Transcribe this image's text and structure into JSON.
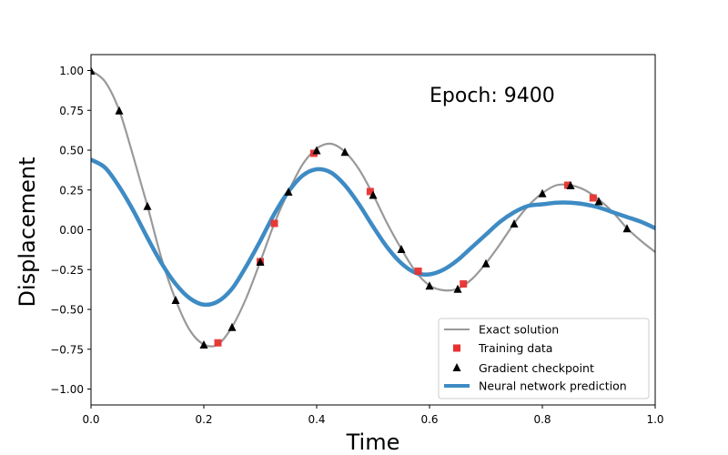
{
  "chart_data": {
    "type": "line",
    "xlabel": "Time",
    "ylabel": "Displacement",
    "xlim": [
      0,
      1
    ],
    "ylim": [
      -1.1,
      1.1
    ],
    "xticks": [
      "0.0",
      "0.2",
      "0.4",
      "0.6",
      "0.8",
      "1.0"
    ],
    "yticks": [
      "-1.00",
      "-0.75",
      "-0.50",
      "-0.25",
      "0.00",
      "0.25",
      "0.50",
      "0.75",
      "1.00"
    ],
    "annotation": "Epoch: 9400",
    "legend_position": "lower-right",
    "grid": false,
    "series": [
      {
        "name": "Exact solution",
        "style": "line",
        "color": "#999999",
        "x": [
          0,
          0.025,
          0.05,
          0.075,
          0.1,
          0.125,
          0.15,
          0.175,
          0.2,
          0.225,
          0.25,
          0.275,
          0.3,
          0.325,
          0.35,
          0.375,
          0.4,
          0.425,
          0.45,
          0.475,
          0.5,
          0.525,
          0.55,
          0.575,
          0.6,
          0.625,
          0.65,
          0.675,
          0.7,
          0.725,
          0.75,
          0.775,
          0.8,
          0.825,
          0.85,
          0.875,
          0.9,
          0.925,
          0.95,
          0.975,
          1.0
        ],
        "y": [
          1.0,
          0.93,
          0.75,
          0.46,
          0.15,
          -0.18,
          -0.44,
          -0.63,
          -0.72,
          -0.72,
          -0.61,
          -0.43,
          -0.2,
          0.04,
          0.24,
          0.41,
          0.51,
          0.54,
          0.49,
          0.38,
          0.22,
          0.04,
          -0.12,
          -0.26,
          -0.35,
          -0.38,
          -0.37,
          -0.31,
          -0.21,
          -0.09,
          0.04,
          0.15,
          0.23,
          0.28,
          0.28,
          0.25,
          0.19,
          0.11,
          0.01,
          -0.07,
          -0.14
        ]
      },
      {
        "name": "Training data",
        "style": "square",
        "color": "#e8312f",
        "x": [
          0.225,
          0.3,
          0.325,
          0.395,
          0.495,
          0.58,
          0.66,
          0.845,
          0.89
        ],
        "y": [
          -0.71,
          -0.2,
          0.04,
          0.48,
          0.24,
          -0.26,
          -0.34,
          0.28,
          0.2
        ]
      },
      {
        "name": "Gradient checkpoint",
        "style": "triangle",
        "color": "#000000",
        "x": [
          0.0,
          0.05,
          0.1,
          0.15,
          0.2,
          0.25,
          0.3,
          0.35,
          0.4,
          0.45,
          0.5,
          0.55,
          0.6,
          0.65,
          0.7,
          0.75,
          0.8,
          0.85,
          0.9,
          0.95
        ],
        "y": [
          1.0,
          0.75,
          0.15,
          -0.44,
          -0.72,
          -0.61,
          -0.2,
          0.24,
          0.5,
          0.49,
          0.22,
          -0.12,
          -0.35,
          -0.37,
          -0.21,
          0.04,
          0.23,
          0.28,
          0.18,
          0.01
        ]
      },
      {
        "name": "Neural network prediction",
        "style": "line-thick",
        "color": "#3e8bc4",
        "x": [
          0,
          0.025,
          0.05,
          0.075,
          0.1,
          0.125,
          0.15,
          0.175,
          0.2,
          0.225,
          0.25,
          0.275,
          0.3,
          0.325,
          0.35,
          0.375,
          0.4,
          0.425,
          0.45,
          0.475,
          0.5,
          0.525,
          0.55,
          0.575,
          0.6,
          0.625,
          0.65,
          0.675,
          0.7,
          0.725,
          0.75,
          0.775,
          0.8,
          0.825,
          0.85,
          0.875,
          0.9,
          0.925,
          0.95,
          0.975,
          1.0
        ],
        "y": [
          0.44,
          0.39,
          0.27,
          0.12,
          -0.05,
          -0.21,
          -0.34,
          -0.43,
          -0.47,
          -0.45,
          -0.37,
          -0.23,
          -0.07,
          0.1,
          0.24,
          0.34,
          0.38,
          0.36,
          0.28,
          0.16,
          0.02,
          -0.11,
          -0.21,
          -0.27,
          -0.28,
          -0.25,
          -0.19,
          -0.11,
          -0.03,
          0.05,
          0.11,
          0.15,
          0.16,
          0.17,
          0.17,
          0.16,
          0.14,
          0.11,
          0.08,
          0.05,
          0.01
        ]
      }
    ]
  }
}
